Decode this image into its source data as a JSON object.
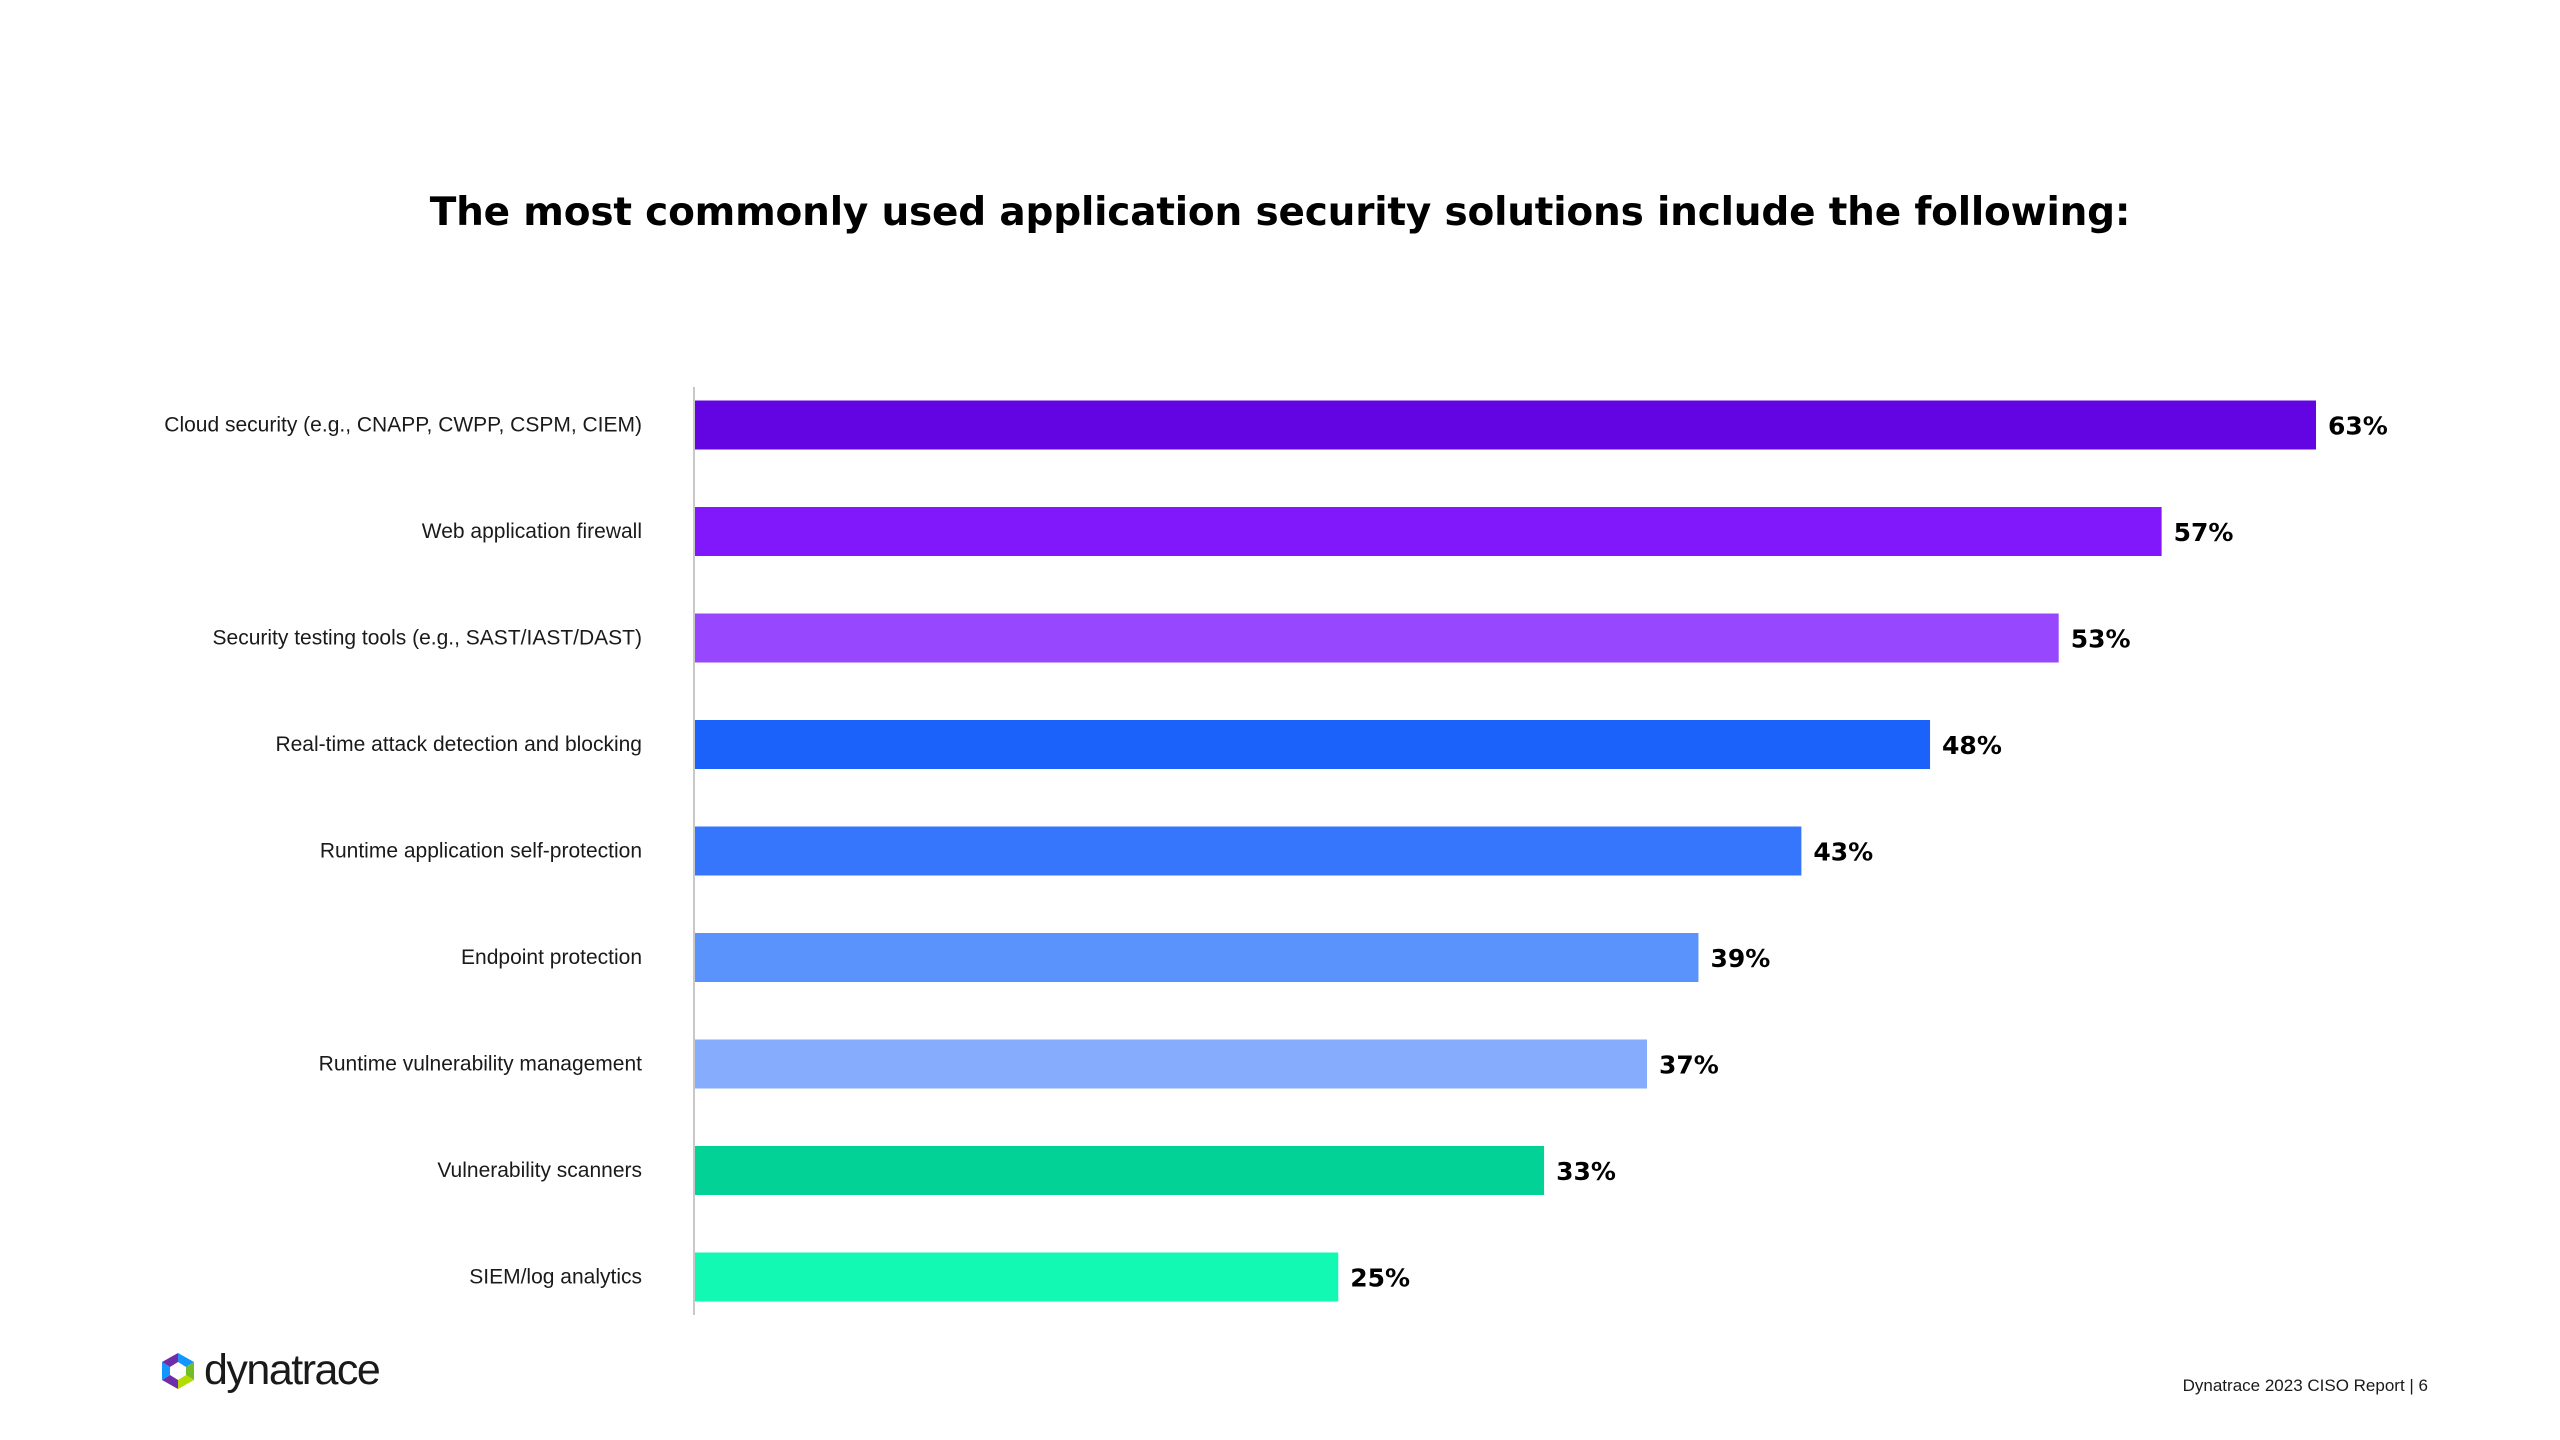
{
  "chart_data": {
    "type": "bar",
    "orientation": "horizontal",
    "title": "The most commonly used application security solutions include the following:",
    "xlabel": "",
    "ylabel": "",
    "xlim": [
      0,
      100
    ],
    "grid": false,
    "value_suffix": "%",
    "categories": [
      "Cloud security (e.g., CNAPP, CWPP, CSPM, CIEM)",
      "Web application firewall",
      "Security testing tools (e.g., SAST/IAST/DAST)",
      "Real-time attack detection and blocking",
      "Runtime application self-protection",
      "Endpoint protection",
      "Runtime vulnerability management",
      "Vulnerability scanners",
      "SIEM/log analytics"
    ],
    "values": [
      63,
      57,
      53,
      48,
      43,
      39,
      37,
      33,
      25
    ],
    "colors": [
      "#6305e3",
      "#8118fb",
      "#9747fe",
      "#1b62fb",
      "#3676fd",
      "#5b93fd",
      "#86acfd",
      "#02d295",
      "#12f9b3"
    ],
    "axis_color": "#c8c8c8"
  },
  "brand": {
    "name": "dynatrace",
    "colors": [
      "#1496ff",
      "#6f2da8",
      "#73be28",
      "#b4dc00"
    ]
  },
  "footer": {
    "text": "Dynatrace 2023 CISO Report | 6"
  }
}
